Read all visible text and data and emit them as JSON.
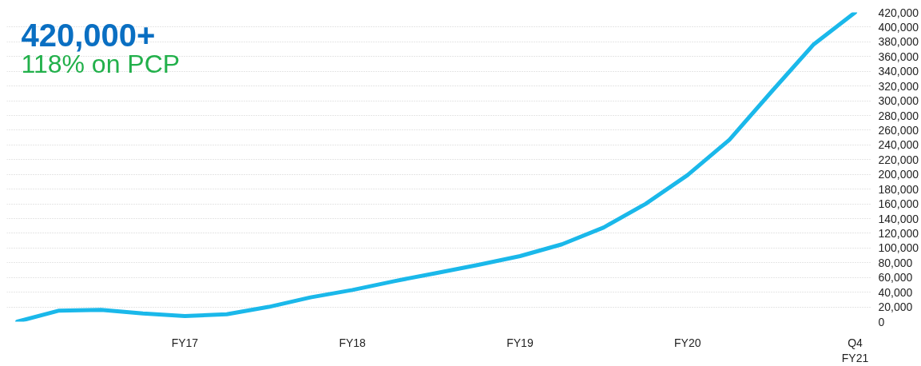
{
  "chart_data": {
    "type": "line",
    "title": "420,000+",
    "subtitle": "118% on PCP",
    "categories": [
      null,
      null,
      null,
      null,
      "FY17",
      null,
      null,
      null,
      "FY18",
      null,
      null,
      null,
      "FY19",
      null,
      null,
      null,
      "FY20",
      null,
      null,
      null,
      "Q4\nFY21"
    ],
    "series": [
      {
        "color": "#1ab8ea",
        "values": [
          0,
          15000,
          16000,
          11000,
          7500,
          10000,
          20000,
          33000,
          43000,
          55000,
          66000,
          77000,
          89000,
          105000,
          128000,
          160000,
          199000,
          247000,
          312000,
          376000,
          420000
        ]
      }
    ],
    "ylim": [
      0,
      420000
    ],
    "yticks": [
      {
        "value": 0,
        "label": "0"
      },
      {
        "value": 20000,
        "label": "20,000"
      },
      {
        "value": 40000,
        "label": "40,000"
      },
      {
        "value": 60000,
        "label": "60,000"
      },
      {
        "value": 80000,
        "label": "80,000"
      },
      {
        "value": 100000,
        "label": "100,000"
      },
      {
        "value": 120000,
        "label": "120,000"
      },
      {
        "value": 140000,
        "label": "140,000"
      },
      {
        "value": 160000,
        "label": "160,000"
      },
      {
        "value": 180000,
        "label": "180,000"
      },
      {
        "value": 200000,
        "label": "200,000"
      },
      {
        "value": 220000,
        "label": "220,000"
      },
      {
        "value": 240000,
        "label": "240,000"
      },
      {
        "value": 260000,
        "label": "260,000"
      },
      {
        "value": 280000,
        "label": "280,000"
      },
      {
        "value": 300000,
        "label": "300,000"
      },
      {
        "value": 320000,
        "label": "320,000"
      },
      {
        "value": 340000,
        "label": "340,000"
      },
      {
        "value": 360000,
        "label": "360,000"
      },
      {
        "value": 380000,
        "label": "380,000"
      },
      {
        "value": 400000,
        "label": "400,000"
      },
      {
        "value": 420000,
        "label": "420,000"
      }
    ],
    "grid": "y",
    "line_style": "solid",
    "marker": "none"
  }
}
